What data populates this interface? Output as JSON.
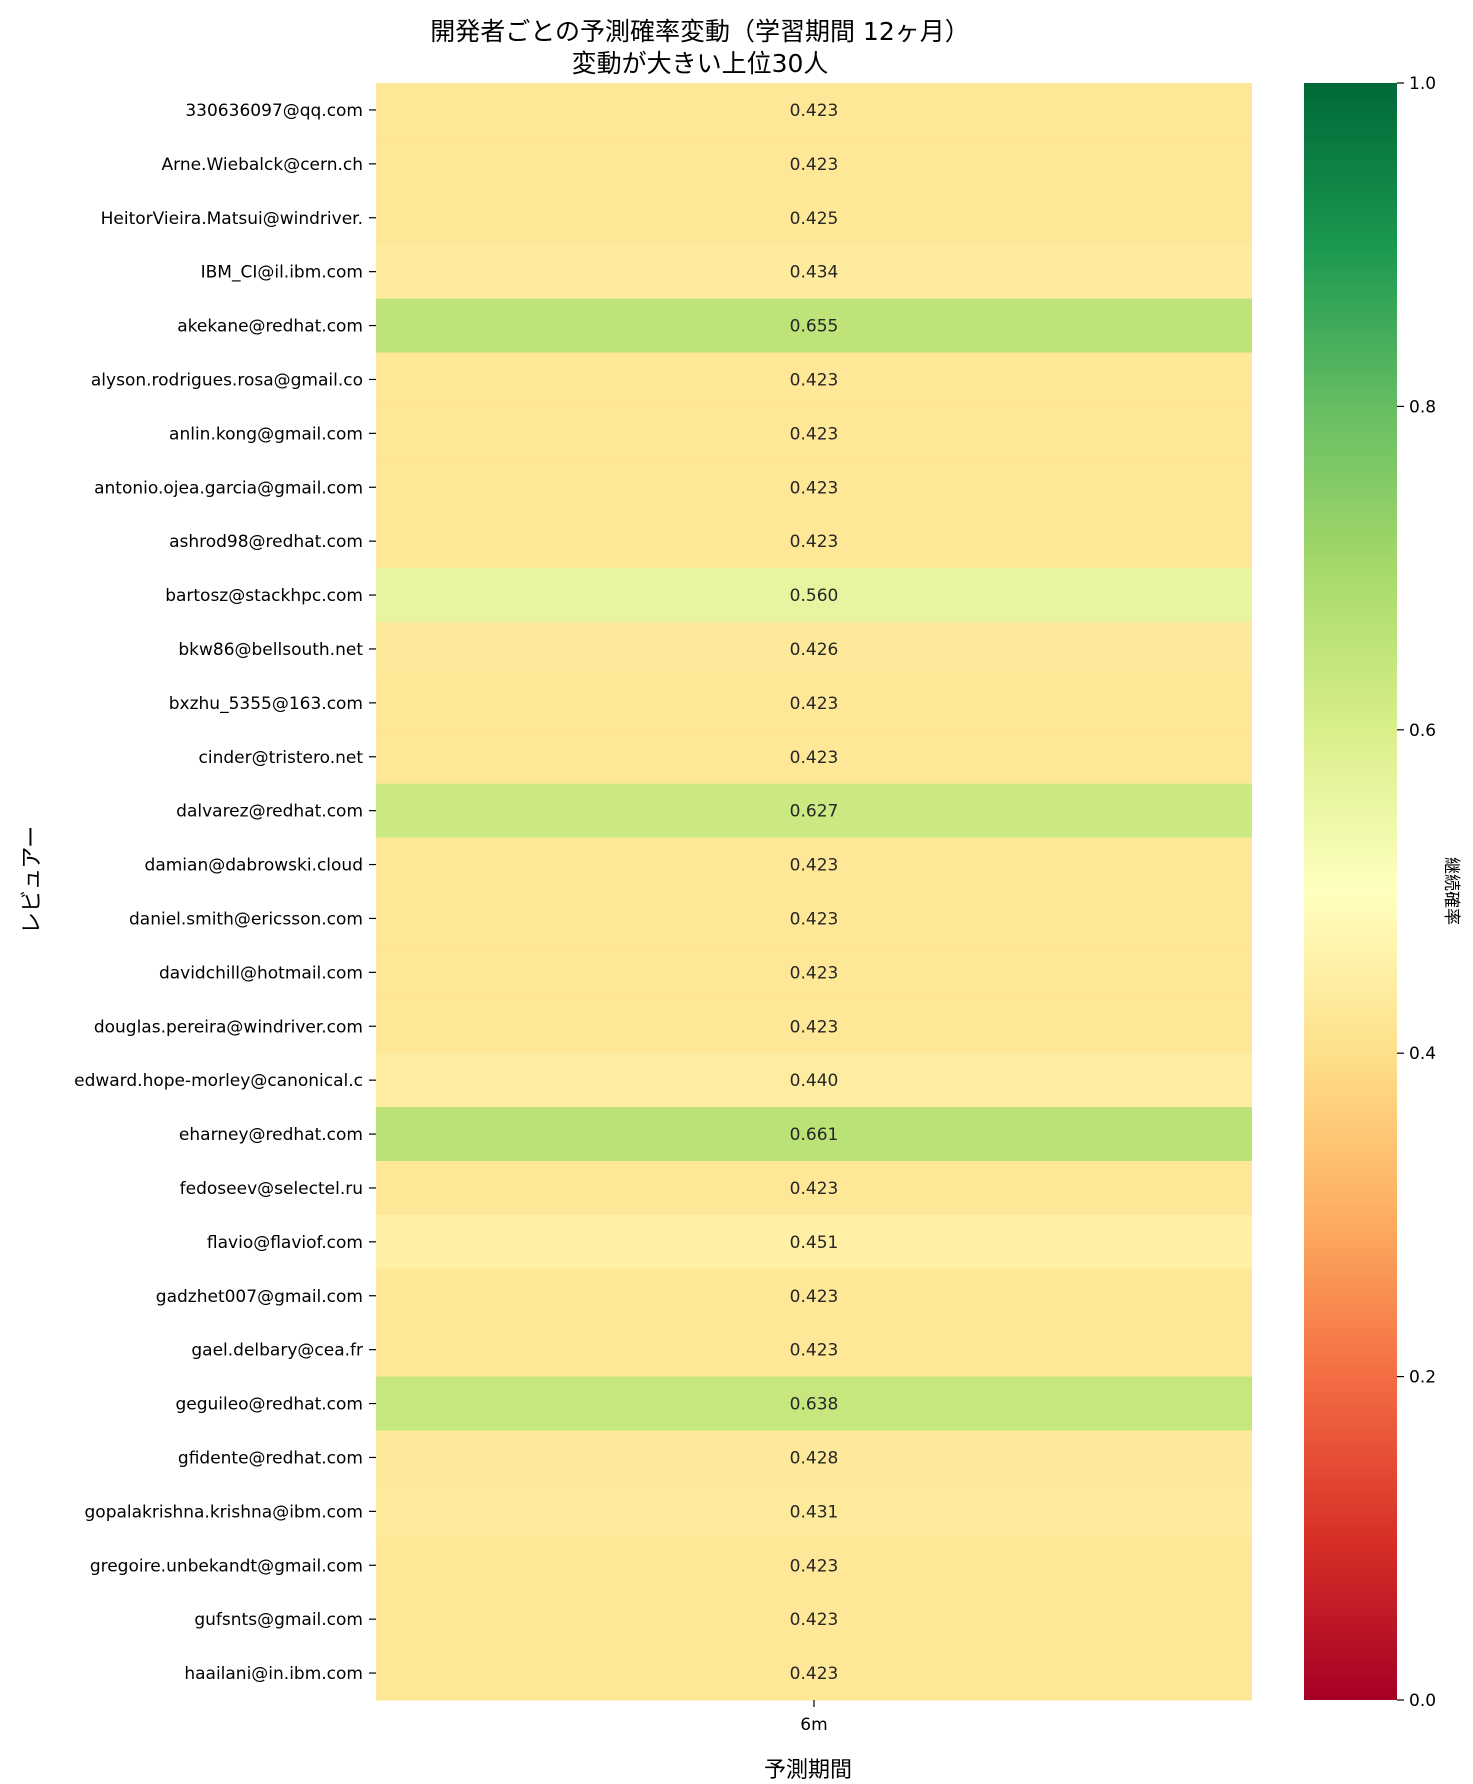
{
  "chart_data": {
    "type": "heatmap",
    "title": "開発者ごとの予測確率変動（学習期間 12ヶ月）",
    "subtitle": "変動が大きい上位30人",
    "xlabel": "予測期間",
    "ylabel": "レビュアー",
    "colorbar_label": "継続確率",
    "colormap": "RdYlGn",
    "vmin": 0.0,
    "vmax": 1.0,
    "colorbar_ticks": [
      "0.0",
      "0.2",
      "0.4",
      "0.6",
      "0.8",
      "1.0"
    ],
    "columns": [
      "6m"
    ],
    "rows": [
      "330636097@qq.com",
      "Arne.Wiebalck@cern.ch",
      "HeitorVieira.Matsui@windriver.",
      "IBM_CI@il.ibm.com",
      "akekane@redhat.com",
      "alyson.rodrigues.rosa@gmail.co",
      "anlin.kong@gmail.com",
      "antonio.ojea.garcia@gmail.com",
      "ashrod98@redhat.com",
      "bartosz@stackhpc.com",
      "bkw86@bellsouth.net",
      "bxzhu_5355@163.com",
      "cinder@tristero.net",
      "dalvarez@redhat.com",
      "damian@dabrowski.cloud",
      "daniel.smith@ericsson.com",
      "davidchill@hotmail.com",
      "douglas.pereira@windriver.com",
      "edward.hope-morley@canonical.c",
      "eharney@redhat.com",
      "fedoseev@selectel.ru",
      "flavio@flaviof.com",
      "gadzhet007@gmail.com",
      "gael.delbary@cea.fr",
      "geguileo@redhat.com",
      "gfidente@redhat.com",
      "gopalakrishna.krishna@ibm.com",
      "gregoire.unbekandt@gmail.com",
      "gufsnts@gmail.com",
      "haailani@in.ibm.com"
    ],
    "values": [
      0.423,
      0.423,
      0.425,
      0.434,
      0.655,
      0.423,
      0.423,
      0.423,
      0.423,
      0.56,
      0.426,
      0.423,
      0.423,
      0.627,
      0.423,
      0.423,
      0.423,
      0.423,
      0.44,
      0.661,
      0.423,
      0.451,
      0.423,
      0.423,
      0.638,
      0.428,
      0.431,
      0.423,
      0.423,
      0.423
    ],
    "value_labels": [
      "0.423",
      "0.423",
      "0.425",
      "0.434",
      "0.655",
      "0.423",
      "0.423",
      "0.423",
      "0.423",
      "0.560",
      "0.426",
      "0.423",
      "0.423",
      "0.627",
      "0.423",
      "0.423",
      "0.423",
      "0.423",
      "0.440",
      "0.661",
      "0.423",
      "0.451",
      "0.423",
      "0.423",
      "0.638",
      "0.428",
      "0.431",
      "0.423",
      "0.423",
      "0.423"
    ]
  }
}
